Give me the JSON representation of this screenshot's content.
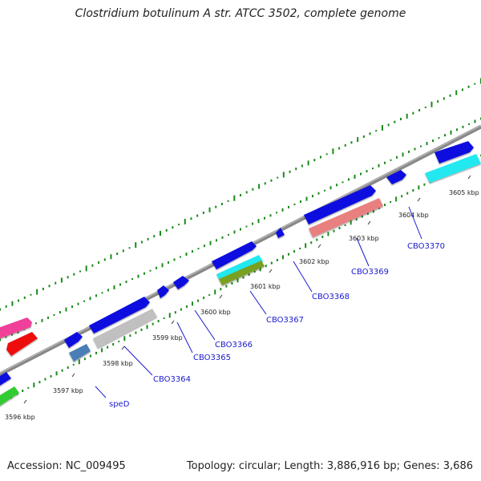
{
  "header": {
    "title": "Clostridium botulinum A str. ATCC 3502, complete genome"
  },
  "footer": {
    "accession": "Accession: NC_009495",
    "summary": "Topology: circular; Length: 3,886,916 bp; Genes: 3,686"
  },
  "ruler": {
    "ticks": [
      "3596 kbp",
      "3597 kbp",
      "3598 kbp",
      "3599 kbp",
      "3600 kbp",
      "3601 kbp",
      "3602 kbp",
      "3603 kbp",
      "3604 kbp",
      "3605 kbp"
    ]
  },
  "genes": [
    {
      "label": "speD",
      "color": "#4a7fb5"
    },
    {
      "label": "CBO3364",
      "color": "#c0c0c0"
    },
    {
      "label": "CBO3365",
      "color": "#1010e0"
    },
    {
      "label": "CBO3366",
      "color": "#1010e0"
    },
    {
      "label": "CBO3367",
      "color": "#2bd0d0"
    },
    {
      "label": "CBO3368",
      "color": "#1010e0"
    },
    {
      "label": "CBO3369",
      "color": "#e88080"
    },
    {
      "label": "CBO3370",
      "color": "#1010e0"
    }
  ],
  "colors": {
    "backbone": "#888888",
    "gc_ticks": "#1a8a1a",
    "blue": "#1010e0",
    "cyan": "#20e8f0",
    "olive": "#7aa020",
    "pink": "#f0409a",
    "red": "#ee1111",
    "green": "#33cc33",
    "salmon": "#e88080",
    "steel": "#4a7fb5",
    "silver": "#c0c0c0"
  }
}
